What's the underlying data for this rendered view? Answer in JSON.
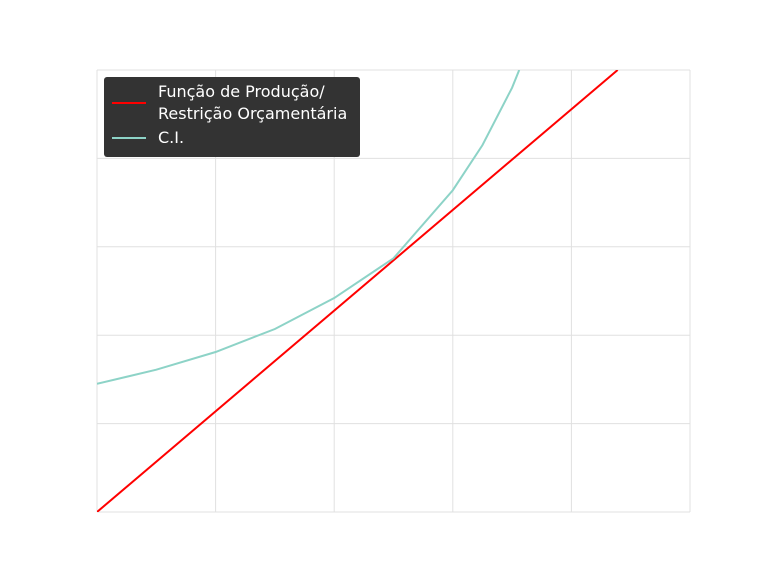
{
  "chart_data": {
    "type": "line",
    "xlim": [
      0,
      5
    ],
    "ylim": [
      0,
      5
    ],
    "xticks": [
      0,
      1,
      2,
      3,
      4,
      5
    ],
    "yticks": [
      0,
      1,
      2,
      3,
      4,
      5
    ],
    "grid": true,
    "legend": "upper left",
    "series": [
      {
        "name": "Função de Produção/\nRestrição Orçamentária",
        "color": "#ff0000",
        "x": [
          0,
          4.39
        ],
        "values": [
          0,
          5
        ]
      },
      {
        "name": "C.I.",
        "color": "#8dd3c7",
        "x": [
          0,
          0.5,
          1,
          1.5,
          2,
          2.5,
          3,
          3.25,
          3.5,
          3.56
        ],
        "values": [
          1.45,
          1.61,
          1.81,
          2.07,
          2.42,
          2.87,
          3.64,
          4.15,
          4.8,
          5.0
        ]
      }
    ]
  }
}
